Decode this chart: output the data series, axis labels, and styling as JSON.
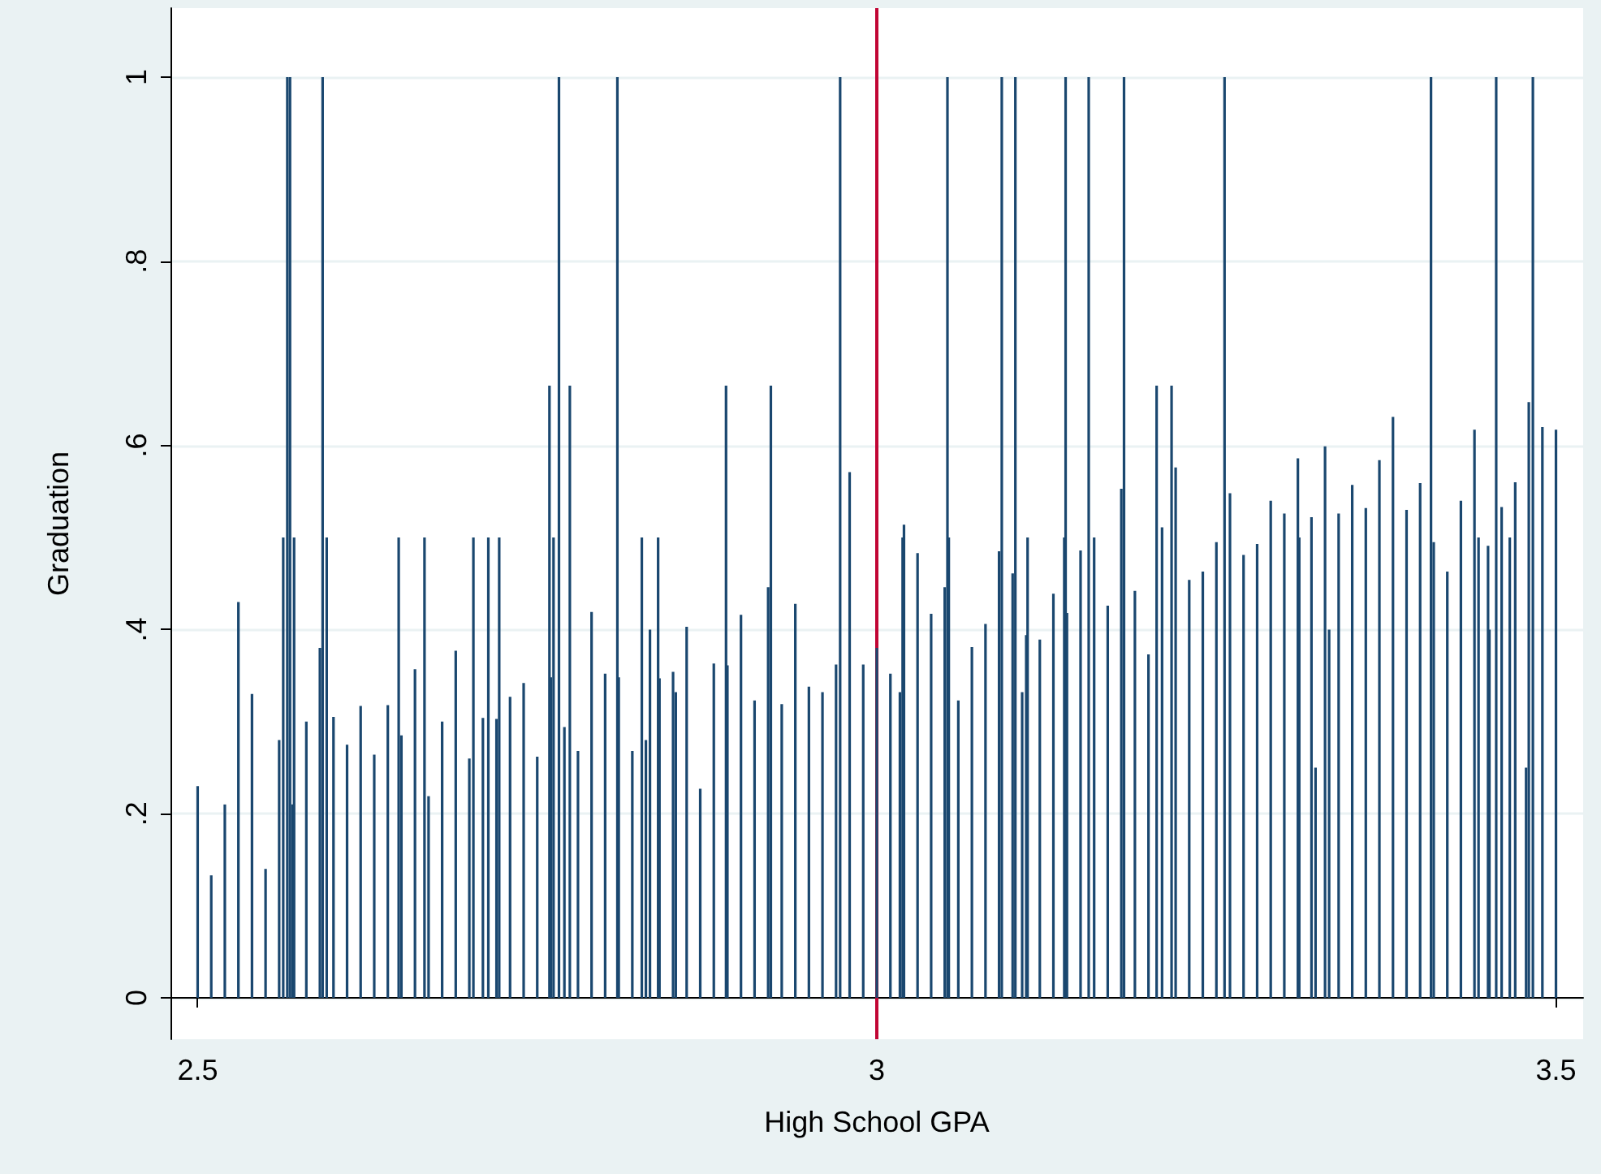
{
  "chart_data": {
    "type": "bar",
    "xlabel": "High School GPA",
    "ylabel": "Graduation",
    "x": [
      2.5,
      2.51,
      2.52,
      2.53,
      2.54,
      2.55,
      2.56,
      2.563,
      2.566,
      2.568,
      2.57,
      2.571,
      2.58,
      2.59,
      2.592,
      2.595,
      2.6,
      2.61,
      2.62,
      2.63,
      2.64,
      2.648,
      2.65,
      2.66,
      2.667,
      2.67,
      2.68,
      2.69,
      2.7,
      2.703,
      2.71,
      2.714,
      2.72,
      2.722,
      2.73,
      2.74,
      2.75,
      2.759,
      2.76,
      2.762,
      2.766,
      2.77,
      2.774,
      2.78,
      2.79,
      2.8,
      2.809,
      2.81,
      2.82,
      2.827,
      2.83,
      2.833,
      2.839,
      2.84,
      2.85,
      2.852,
      2.86,
      2.87,
      2.88,
      2.889,
      2.89,
      2.9,
      2.91,
      2.92,
      2.922,
      2.93,
      2.94,
      2.95,
      2.96,
      2.97,
      2.973,
      2.98,
      2.99,
      3.0,
      3.01,
      3.017,
      3.019,
      3.02,
      3.03,
      3.04,
      3.05,
      3.052,
      3.053,
      3.06,
      3.07,
      3.08,
      3.09,
      3.092,
      3.1,
      3.102,
      3.107,
      3.11,
      3.111,
      3.12,
      3.13,
      3.138,
      3.139,
      3.14,
      3.15,
      3.156,
      3.16,
      3.17,
      3.18,
      3.182,
      3.19,
      3.2,
      3.206,
      3.21,
      3.217,
      3.22,
      3.23,
      3.24,
      3.25,
      3.256,
      3.26,
      3.27,
      3.28,
      3.29,
      3.3,
      3.31,
      3.311,
      3.32,
      3.323,
      3.33,
      3.333,
      3.34,
      3.35,
      3.36,
      3.37,
      3.38,
      3.39,
      3.4,
      3.408,
      3.41,
      3.42,
      3.43,
      3.44,
      3.443,
      3.45,
      3.451,
      3.456,
      3.46,
      3.466,
      3.47,
      3.478,
      3.48,
      3.483,
      3.49,
      3.5
    ],
    "values": [
      0.23,
      0.133,
      0.21,
      0.43,
      0.33,
      0.14,
      0.28,
      0.5,
      1,
      1,
      0.21,
      0.5,
      0.3,
      0.38,
      1,
      0.5,
      0.305,
      0.275,
      0.317,
      0.264,
      0.318,
      0.5,
      0.285,
      0.357,
      0.5,
      0.219,
      0.3,
      0.377,
      0.26,
      0.5,
      0.304,
      0.5,
      0.303,
      0.5,
      0.327,
      0.342,
      0.262,
      0.665,
      0.348,
      0.5,
      1,
      0.294,
      0.665,
      0.268,
      0.419,
      0.352,
      1,
      0.348,
      0.268,
      0.5,
      0.28,
      0.4,
      0.5,
      0.347,
      0.354,
      0.332,
      0.403,
      0.227,
      0.363,
      0.665,
      0.361,
      0.416,
      0.323,
      0.446,
      0.665,
      0.319,
      0.428,
      0.338,
      0.332,
      0.362,
      1,
      0.571,
      0.362,
      0.38,
      0.352,
      0.332,
      0.5,
      0.514,
      0.483,
      0.417,
      0.446,
      1,
      0.5,
      0.323,
      0.381,
      0.406,
      0.485,
      1,
      0.461,
      1,
      0.332,
      0.394,
      0.5,
      0.389,
      0.439,
      0.5,
      1,
      0.418,
      0.486,
      1,
      0.5,
      0.426,
      0.553,
      1,
      0.442,
      0.373,
      0.665,
      0.511,
      0.665,
      0.576,
      0.454,
      0.463,
      0.495,
      1,
      0.548,
      0.481,
      0.493,
      0.54,
      0.526,
      0.586,
      0.5,
      0.522,
      0.25,
      0.599,
      0.4,
      0.526,
      0.557,
      0.532,
      0.584,
      0.631,
      0.53,
      0.559,
      1,
      0.495,
      0.463,
      0.54,
      0.617,
      0.5,
      0.491,
      0.4,
      1,
      0.533,
      0.5,
      0.56,
      0.25,
      0.647,
      1,
      0.62,
      0.617
    ],
    "color": "#1a476f",
    "xlim": [
      2.48,
      3.52
    ],
    "xticks": [
      2.5,
      3,
      3.5
    ],
    "ylim": [
      -0.045,
      1.075
    ],
    "yticks": [
      0,
      {
        "value": 0.2,
        "label": ".2"
      },
      {
        "value": 0.4,
        "label": ".4"
      },
      {
        "value": 0.6,
        "label": ".6"
      },
      {
        "value": 0.8,
        "label": ".8"
      },
      1
    ],
    "grid": "y",
    "ref_lines": [
      {
        "axis": "x",
        "value": 3,
        "color": "#c10534"
      }
    ]
  }
}
